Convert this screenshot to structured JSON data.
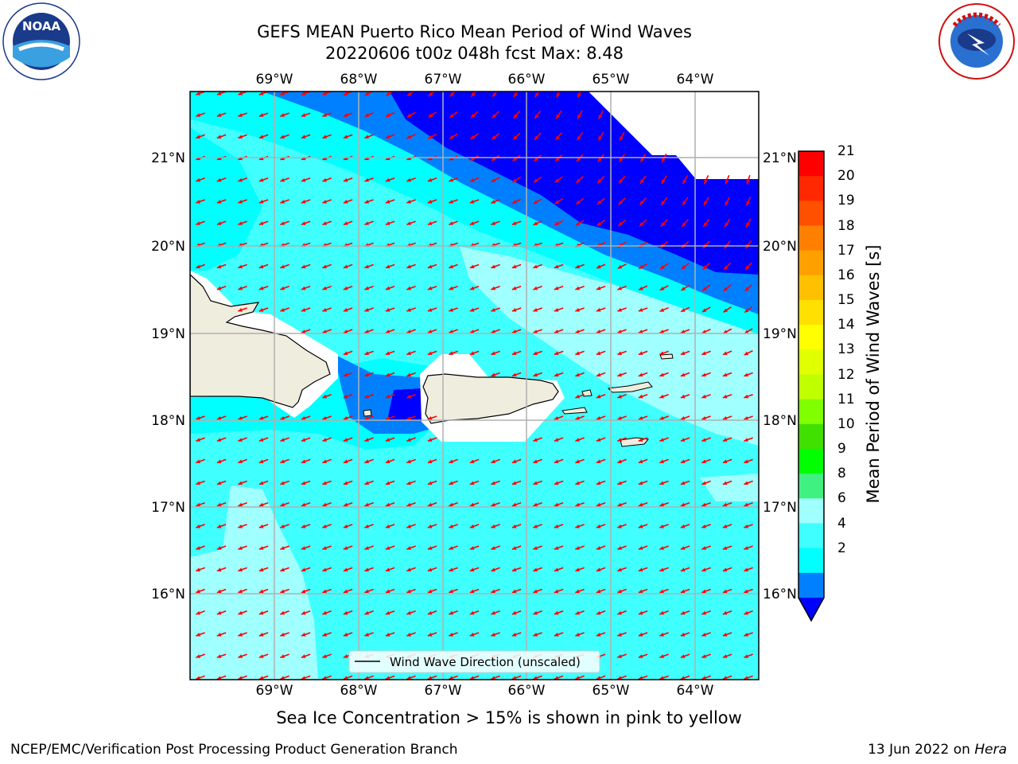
{
  "title": {
    "line1": "GEFS MEAN Puerto Rico Mean Period of Wind Waves",
    "line2": "20220606 t00z 048h fcst   Max: 8.48"
  },
  "logos": {
    "left": {
      "icon": "noaa-logo-icon",
      "text": "NOAA",
      "ring_text": "NATIONAL OCEANIC AND ATMOSPHERIC ADMINISTRATION · U.S. DEPARTMENT OF COMMERCE"
    },
    "right": {
      "icon": "nws-logo-icon",
      "ring_text": "NATIONAL WEATHER SERVICE"
    }
  },
  "map": {
    "lon_ticks": [
      "69°W",
      "68°W",
      "67°W",
      "66°W",
      "65°W",
      "64°W"
    ],
    "lat_ticks": [
      "21°N",
      "20°N",
      "19°N",
      "18°N",
      "17°N",
      "16°N"
    ],
    "legend": "Wind Wave Direction (unscaled)",
    "arrow_color": "#ff0000",
    "land_color": "#efedde",
    "grid_color": "#b0b0b0"
  },
  "colorbar": {
    "label": "Mean Period of Wind Waves [s]",
    "ticks": [
      "21",
      "20",
      "19",
      "18",
      "17",
      "16",
      "15",
      "14",
      "13",
      "12",
      "11",
      "10",
      "9",
      "8",
      "6",
      "4",
      "2"
    ],
    "colors": [
      "#ff0000",
      "#ff2800",
      "#ff5000",
      "#ff8000",
      "#ffa000",
      "#ffc000",
      "#ffe000",
      "#ffff00",
      "#e0ff00",
      "#c0ff00",
      "#80ff00",
      "#40e000",
      "#00ff00",
      "#40f080",
      "#a0ffff",
      "#40ffff",
      "#00ffff",
      "#0080ff",
      "#0000ff"
    ]
  },
  "note": "Sea Ice Concentration > 15% is shown in pink to yellow",
  "footer": {
    "left": "NCEP/EMC/Verification Post Processing Product Generation Branch",
    "right_date": "13 Jun 2022 on ",
    "right_host": "Hera"
  }
}
